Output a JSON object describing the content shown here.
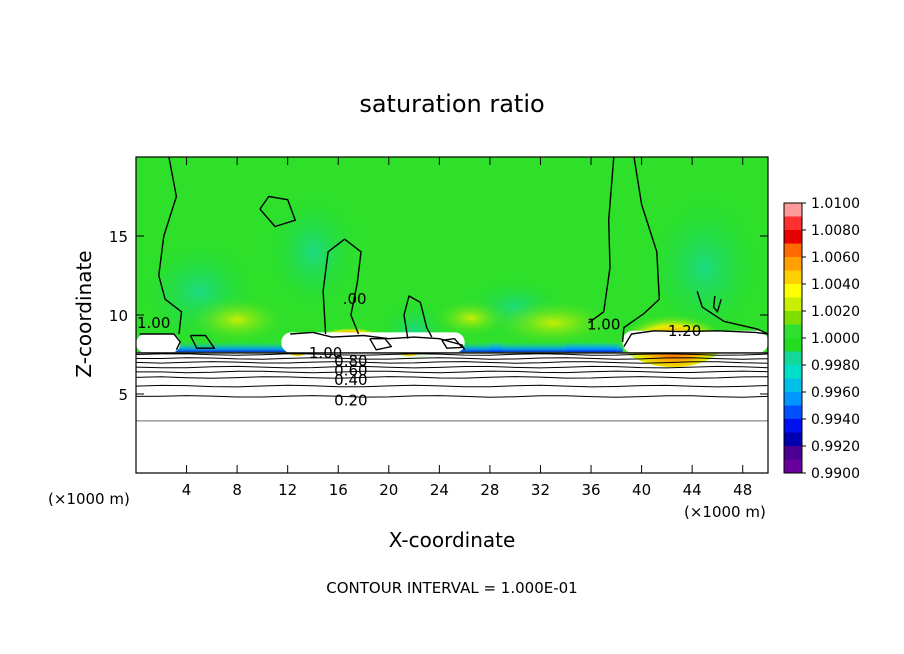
{
  "chart_data": {
    "type": "heatmap",
    "title": "saturation ratio",
    "xlabel": "X-coordinate",
    "ylabel": "Z-coordinate",
    "x_unit_left": "(×1000 m)",
    "x_unit_right": "(×1000 m)",
    "footer": "CONTOUR INTERVAL = 1.000E-01",
    "xlim": [
      0,
      50
    ],
    "ylim": [
      0,
      20
    ],
    "x_ticks": [
      4,
      8,
      12,
      16,
      20,
      24,
      28,
      32,
      36,
      40,
      44,
      48
    ],
    "y_ticks": [
      5,
      10,
      15
    ],
    "colorbar": {
      "min": 0.99,
      "max": 1.01,
      "labels": [
        "1.0100",
        "1.0080",
        "1.0060",
        "1.0040",
        "1.0020",
        "1.0000",
        "0.9980",
        "0.9960",
        "0.9940",
        "0.9920",
        "0.9900"
      ],
      "colors": [
        "#ff9a9a",
        "#ff3030",
        "#e60000",
        "#ff6a00",
        "#ff9f00",
        "#ffd000",
        "#ffff00",
        "#c8f000",
        "#7ee000",
        "#2ee030",
        "#22dd22",
        "#14d89a",
        "#00e0c8",
        "#00c0e8",
        "#0096ff",
        "#0050ff",
        "#0010f0",
        "#0000b0",
        "#4a0090",
        "#6a009a"
      ]
    },
    "contour_labels": [
      {
        "text": "1.00",
        "x": 1.4,
        "y": 9.5
      },
      {
        "text": ".00",
        "x": 17.3,
        "y": 11.0
      },
      {
        "text": "1.00",
        "x": 37.0,
        "y": 9.4
      },
      {
        "text": "1.20",
        "x": 43.4,
        "y": 9.0
      },
      {
        "text": "1.00",
        "x": 15.0,
        "y": 7.6
      },
      {
        "text": "0.80",
        "x": 17.0,
        "y": 7.1
      },
      {
        "text": "0.60",
        "x": 17.0,
        "y": 6.5
      },
      {
        "text": "0.40",
        "x": 17.0,
        "y": 5.9
      },
      {
        "text": "0.20",
        "x": 17.0,
        "y": 4.6
      }
    ],
    "contour_levels_below_cloud": [
      {
        "level": 0.2,
        "y": 4.85
      },
      {
        "level": 0.3,
        "y": 5.5
      },
      {
        "level": 0.4,
        "y": 6.05
      },
      {
        "level": 0.5,
        "y": 6.4
      },
      {
        "level": 0.6,
        "y": 6.7
      },
      {
        "level": 0.7,
        "y": 7.0
      },
      {
        "level": 0.8,
        "y": 7.25
      },
      {
        "level": 0.9,
        "y": 7.5
      }
    ],
    "saturated_regions": [
      {
        "x": [
          0,
          3.5
        ],
        "y": [
          7.6,
          8.8
        ]
      },
      {
        "x": [
          11.5,
          26
        ],
        "y": [
          7.6,
          8.9
        ]
      },
      {
        "x": [
          38.5,
          50
        ],
        "y": [
          7.6,
          9.0
        ]
      }
    ]
  }
}
